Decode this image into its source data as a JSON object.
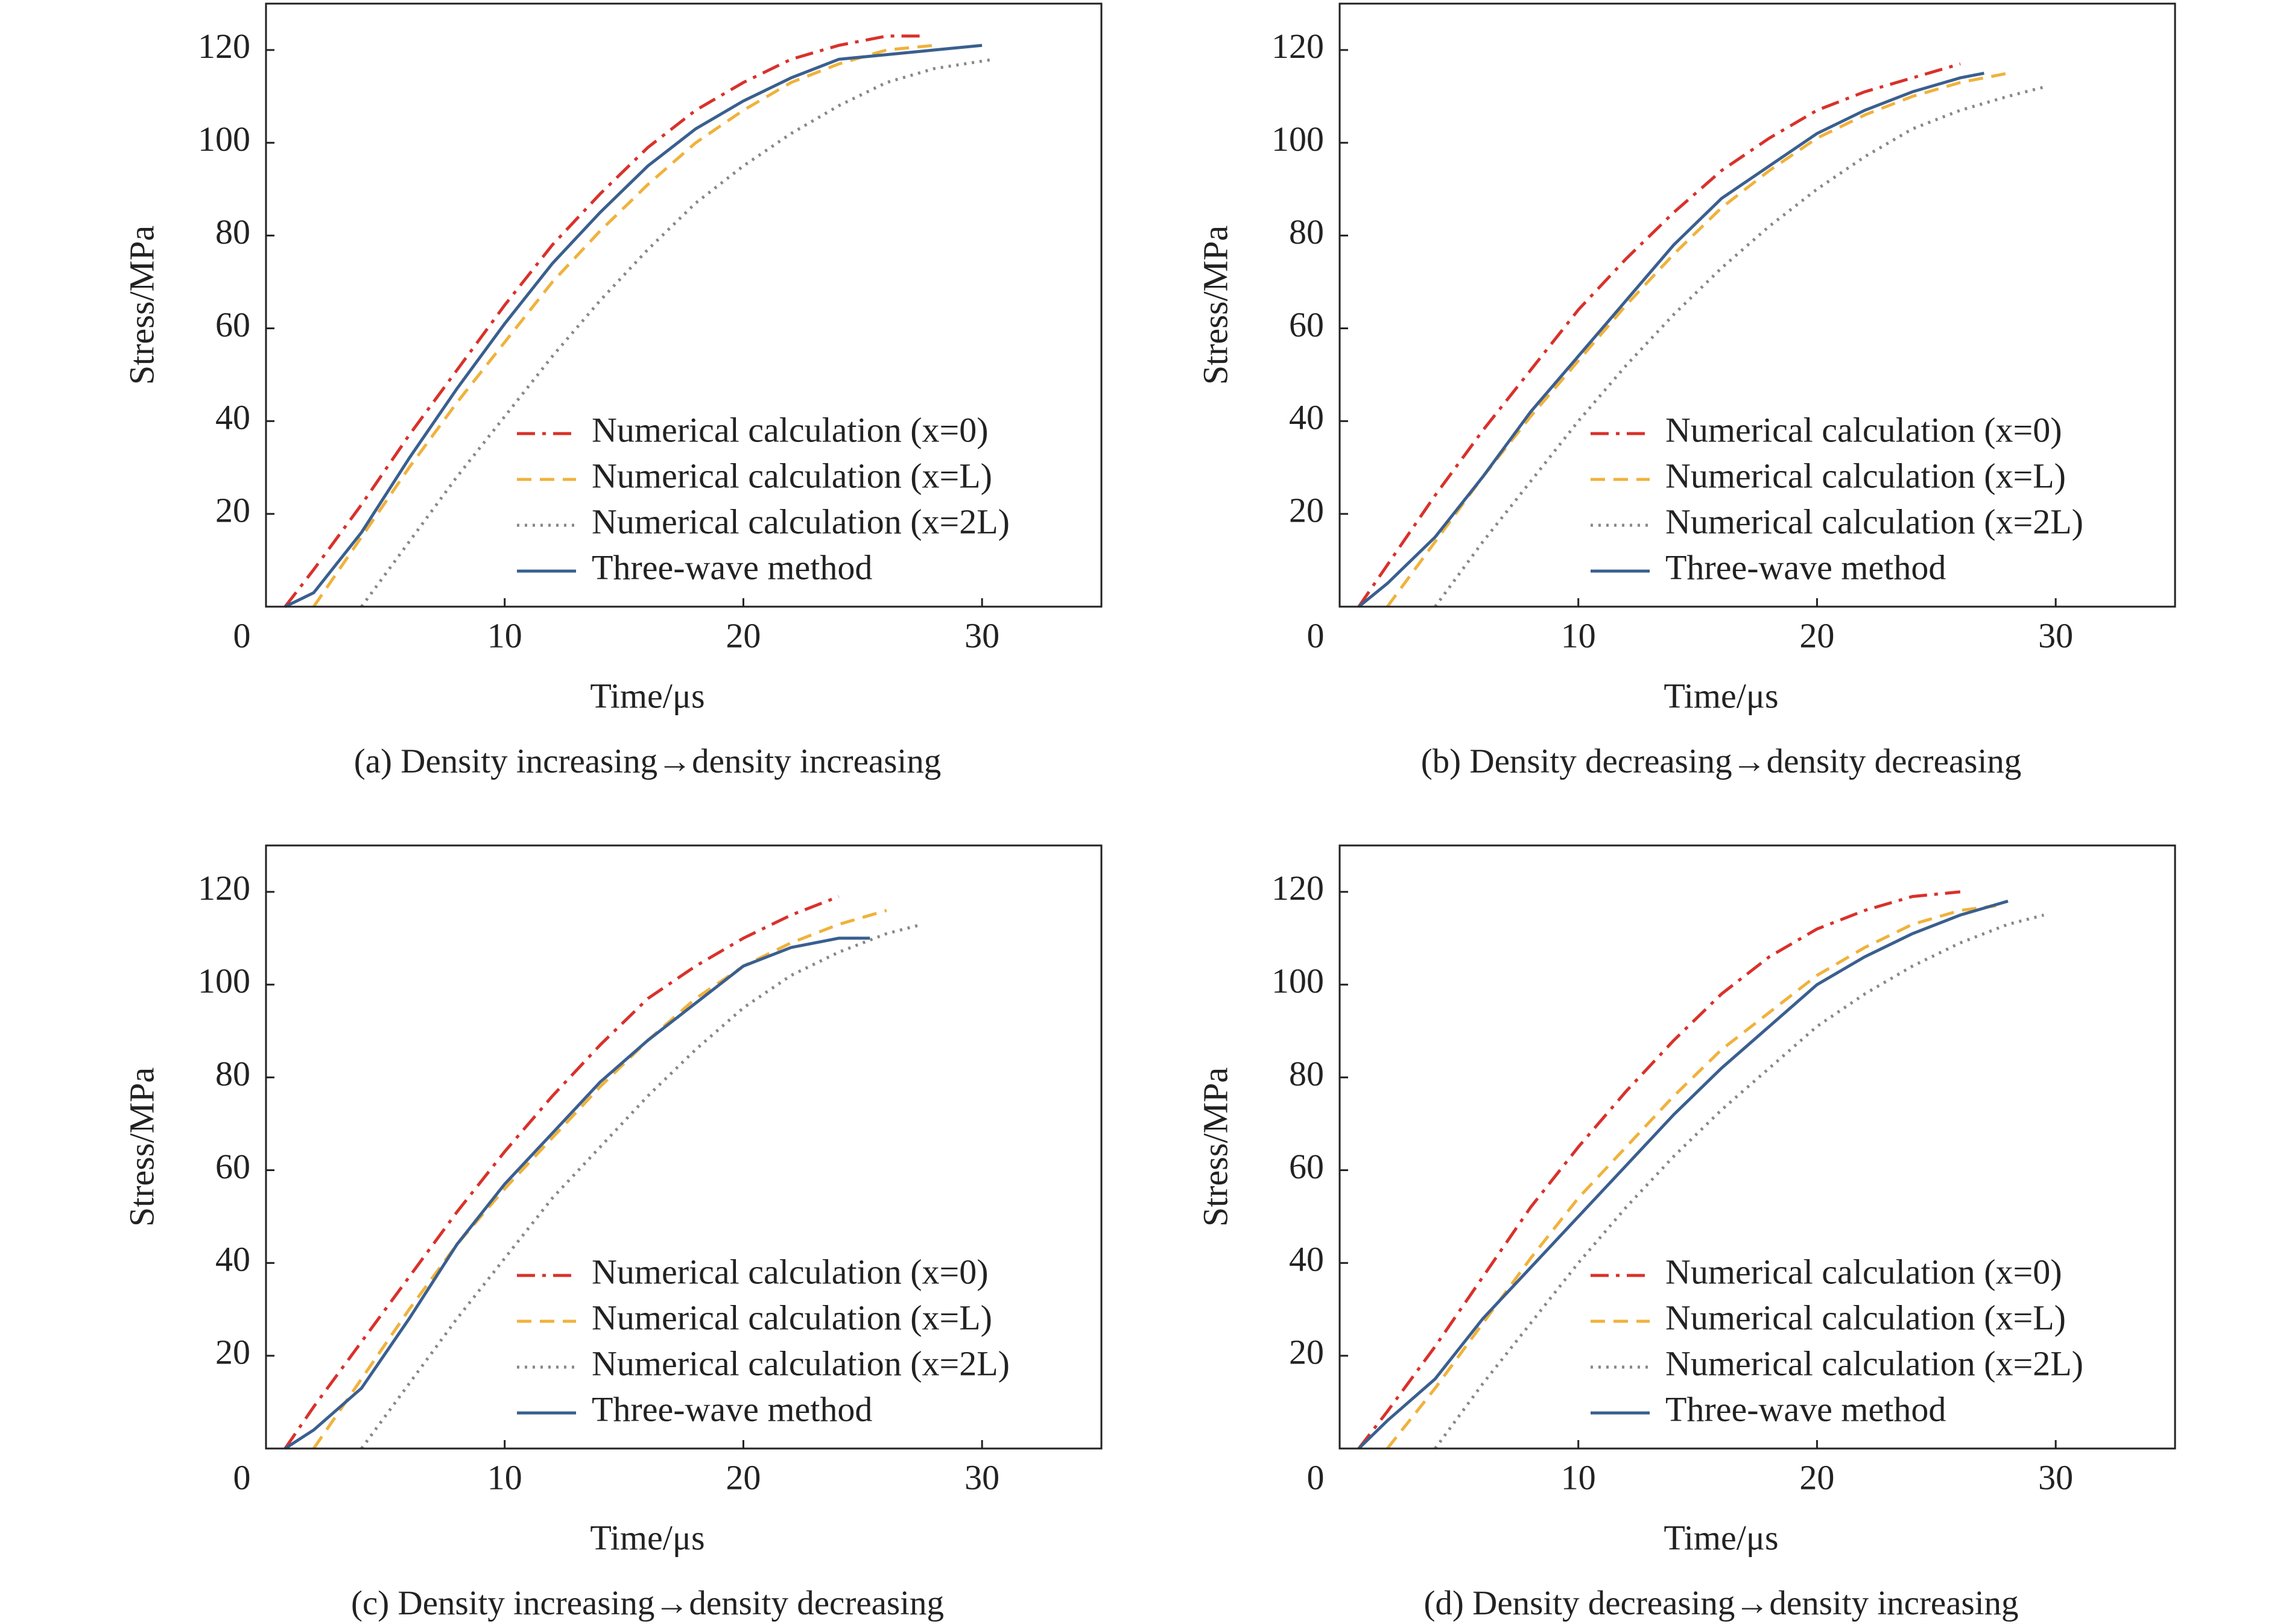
{
  "chart_data": [
    {
      "type": "line",
      "caption": "(a) Density increasing→density increasing",
      "xlabel": "Time/μs",
      "ylabel": "Stress/MPa",
      "xlim": [
        0,
        35
      ],
      "ylim": [
        0,
        130
      ],
      "xticks": [
        0,
        10,
        20,
        30
      ],
      "yticks": [
        20,
        40,
        60,
        80,
        100,
        120
      ],
      "legend": "lower right",
      "series": [
        {
          "name": "Numerical calculation (x=0)",
          "color": "#d9312b",
          "style": "dash-dot",
          "x": [
            0.8,
            2,
            4,
            6,
            8,
            10,
            12,
            14,
            16,
            18,
            20,
            22,
            24,
            26,
            27.5
          ],
          "values": [
            0,
            8,
            22,
            37,
            51,
            65,
            78,
            89,
            99,
            107,
            113,
            118,
            121,
            123,
            123
          ]
        },
        {
          "name": "Numerical calculation (x=L)",
          "color": "#f0b23c",
          "style": "dashed",
          "x": [
            2,
            4,
            6,
            8,
            10,
            12,
            14,
            16,
            18,
            20,
            22,
            24,
            26,
            28
          ],
          "values": [
            0,
            15,
            30,
            44,
            57,
            70,
            81,
            91,
            100,
            107,
            113,
            117,
            120,
            121
          ]
        },
        {
          "name": "Numerical calculation (x=2L)",
          "color": "#888888",
          "style": "dotted",
          "x": [
            4,
            6,
            8,
            10,
            12,
            14,
            16,
            18,
            20,
            22,
            24,
            26,
            28,
            30.5
          ],
          "values": [
            0,
            14,
            28,
            41,
            54,
            66,
            77,
            87,
            95,
            102,
            108,
            113,
            116,
            118
          ]
        },
        {
          "name": "Three-wave method",
          "color": "#3a5f8f",
          "style": "solid",
          "x": [
            0.8,
            2,
            4,
            6,
            8,
            10,
            12,
            14,
            16,
            18,
            20,
            22,
            24,
            26,
            28,
            30
          ],
          "values": [
            0,
            3,
            16,
            32,
            47,
            61,
            74,
            85,
            95,
            103,
            109,
            114,
            118,
            119,
            120,
            121
          ]
        }
      ]
    },
    {
      "type": "line",
      "caption": "(b) Density decreasing→density decreasing",
      "xlabel": "Time/μs",
      "ylabel": "Stress/MPa",
      "xlim": [
        0,
        35
      ],
      "ylim": [
        0,
        130
      ],
      "xticks": [
        0,
        10,
        20,
        30
      ],
      "yticks": [
        20,
        40,
        60,
        80,
        100,
        120
      ],
      "legend": "lower right",
      "series": [
        {
          "name": "Numerical calculation (x=0)",
          "color": "#d9312b",
          "style": "dash-dot",
          "x": [
            0.8,
            2,
            4,
            6,
            8,
            10,
            12,
            14,
            16,
            18,
            20,
            22,
            24,
            26
          ],
          "values": [
            0,
            9,
            24,
            38,
            51,
            64,
            75,
            85,
            94,
            101,
            107,
            111,
            114,
            117
          ]
        },
        {
          "name": "Numerical calculation (x=L)",
          "color": "#f0b23c",
          "style": "dashed",
          "x": [
            2,
            4,
            6,
            8,
            10,
            12,
            14,
            16,
            18,
            20,
            22,
            24,
            26,
            28
          ],
          "values": [
            0,
            14,
            28,
            41,
            53,
            65,
            76,
            86,
            94,
            101,
            106,
            110,
            113,
            115
          ]
        },
        {
          "name": "Numerical calculation (x=2L)",
          "color": "#888888",
          "style": "dotted",
          "x": [
            4,
            6,
            8,
            10,
            12,
            14,
            16,
            18,
            20,
            22,
            24,
            26,
            28,
            29.5
          ],
          "values": [
            0,
            14,
            27,
            40,
            52,
            63,
            73,
            82,
            90,
            97,
            103,
            107,
            110,
            112
          ]
        },
        {
          "name": "Three-wave method",
          "color": "#3a5f8f",
          "style": "solid",
          "x": [
            0.8,
            2,
            4,
            6,
            8,
            10,
            12,
            14,
            16,
            18,
            20,
            22,
            24,
            26,
            27
          ],
          "values": [
            0,
            5,
            15,
            28,
            42,
            54,
            66,
            78,
            88,
            95,
            102,
            107,
            111,
            114,
            115
          ]
        }
      ]
    },
    {
      "type": "line",
      "caption": "(c) Density increasing→density decreasing",
      "xlabel": "Time/μs",
      "ylabel": "Stress/MPa",
      "xlim": [
        0,
        35
      ],
      "ylim": [
        0,
        130
      ],
      "xticks": [
        0,
        10,
        20,
        30
      ],
      "yticks": [
        20,
        40,
        60,
        80,
        100,
        120
      ],
      "legend": "lower right",
      "series": [
        {
          "name": "Numerical calculation (x=0)",
          "color": "#d9312b",
          "style": "dash-dot",
          "x": [
            0.8,
            2,
            4,
            6,
            8,
            10,
            12,
            14,
            16,
            18,
            20,
            22,
            24
          ],
          "values": [
            0,
            9,
            23,
            37,
            51,
            64,
            76,
            87,
            97,
            104,
            110,
            115,
            119
          ]
        },
        {
          "name": "Numerical calculation (x=L)",
          "color": "#f0b23c",
          "style": "dashed",
          "x": [
            2,
            4,
            6,
            8,
            10,
            12,
            14,
            16,
            18,
            20,
            22,
            24,
            26
          ],
          "values": [
            0,
            15,
            30,
            44,
            56,
            67,
            78,
            88,
            97,
            104,
            109,
            113,
            116
          ]
        },
        {
          "name": "Numerical calculation (x=2L)",
          "color": "#888888",
          "style": "dotted",
          "x": [
            4,
            6,
            8,
            10,
            12,
            14,
            16,
            18,
            20,
            22,
            24,
            26,
            27.5
          ],
          "values": [
            0,
            14,
            28,
            41,
            54,
            65,
            76,
            86,
            95,
            102,
            107,
            111,
            113
          ]
        },
        {
          "name": "Three-wave method",
          "color": "#3a5f8f",
          "style": "solid",
          "x": [
            0.8,
            2,
            4,
            6,
            8,
            10,
            12,
            14,
            16,
            18,
            20,
            22,
            24,
            25.3
          ],
          "values": [
            0,
            4,
            13,
            28,
            44,
            57,
            68,
            79,
            88,
            96,
            104,
            108,
            110,
            110
          ]
        }
      ]
    },
    {
      "type": "line",
      "caption": "(d) Density decreasing→density increasing",
      "xlabel": "Time/μs",
      "ylabel": "Stress/MPa",
      "xlim": [
        0,
        35
      ],
      "ylim": [
        0,
        130
      ],
      "xticks": [
        0,
        10,
        20,
        30
      ],
      "yticks": [
        20,
        40,
        60,
        80,
        100,
        120
      ],
      "legend": "lower right",
      "series": [
        {
          "name": "Numerical calculation (x=0)",
          "color": "#d9312b",
          "style": "dash-dot",
          "x": [
            0.8,
            2,
            4,
            6,
            8,
            10,
            12,
            14,
            16,
            18,
            20,
            22,
            24,
            26
          ],
          "values": [
            0,
            8,
            22,
            37,
            52,
            65,
            77,
            88,
            98,
            106,
            112,
            116,
            119,
            120
          ]
        },
        {
          "name": "Numerical calculation (x=L)",
          "color": "#f0b23c",
          "style": "dashed",
          "x": [
            2,
            4,
            6,
            8,
            10,
            12,
            14,
            16,
            18,
            20,
            22,
            24,
            26,
            27.5
          ],
          "values": [
            0,
            13,
            27,
            41,
            54,
            65,
            76,
            86,
            94,
            102,
            108,
            113,
            116,
            117
          ]
        },
        {
          "name": "Numerical calculation (x=2L)",
          "color": "#888888",
          "style": "dotted",
          "x": [
            4,
            6,
            8,
            10,
            12,
            14,
            16,
            18,
            20,
            22,
            24,
            26,
            28,
            29.5
          ],
          "values": [
            0,
            14,
            27,
            40,
            52,
            63,
            73,
            82,
            91,
            98,
            104,
            109,
            113,
            115
          ]
        },
        {
          "name": "Three-wave method",
          "color": "#3a5f8f",
          "style": "solid",
          "x": [
            0.8,
            2,
            4,
            6,
            8,
            10,
            12,
            14,
            16,
            18,
            20,
            22,
            24,
            26,
            28
          ],
          "values": [
            0,
            6,
            15,
            28,
            39,
            50,
            61,
            72,
            82,
            91,
            100,
            106,
            111,
            115,
            118
          ]
        }
      ]
    }
  ]
}
